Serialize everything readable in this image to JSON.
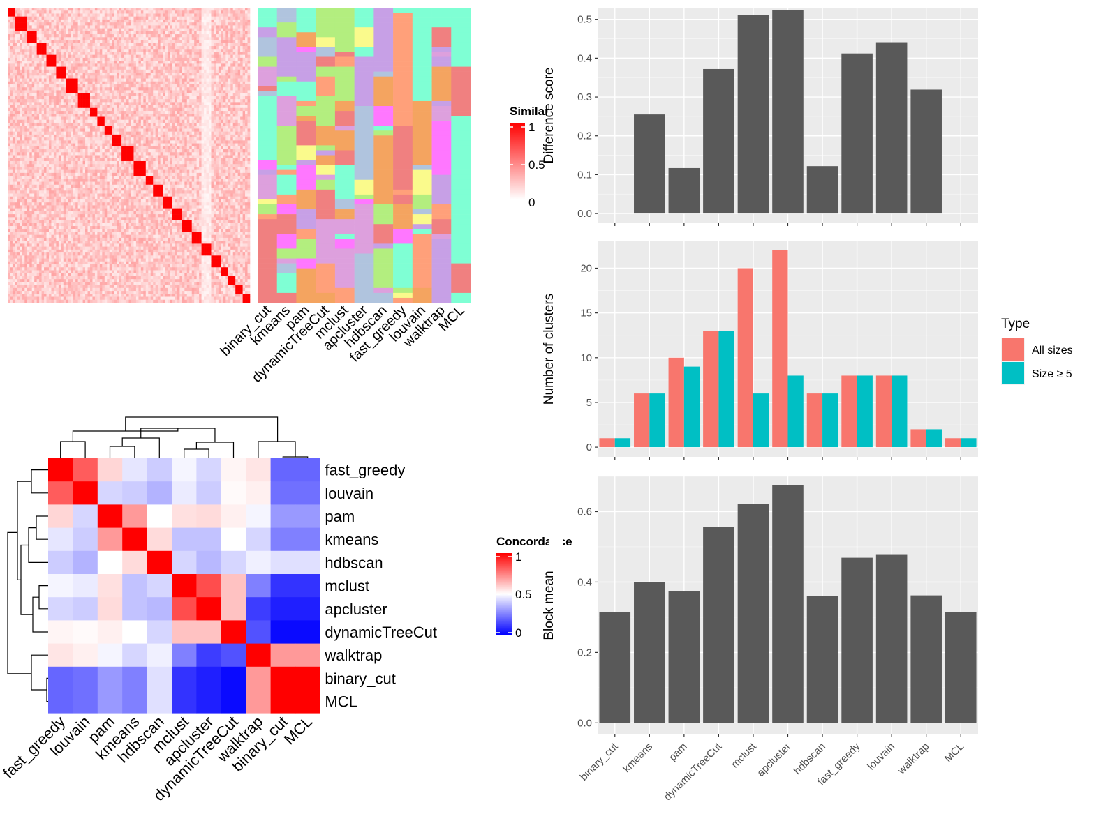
{
  "methods_order": [
    "binary_cut",
    "kmeans",
    "pam",
    "dynamicTreeCut",
    "mclust",
    "apcluster",
    "hdbscan",
    "fast_greedy",
    "louvain",
    "walktrap",
    "MCL"
  ],
  "similarity_legend": {
    "title": "Similarity",
    "ticks": [
      "1",
      "0.5",
      "0"
    ],
    "colors": [
      "#ffffff",
      "#ff0000"
    ]
  },
  "concordance_legend": {
    "title": "Concordance",
    "ticks": [
      "1",
      "0.5",
      "0"
    ],
    "colors": [
      "#0000ff",
      "#ffffff",
      "#ff0000"
    ]
  },
  "concordance_heatmap": {
    "row_labels": [
      "fast_greedy",
      "louvain",
      "pam",
      "kmeans",
      "hdbscan",
      "mclust",
      "apcluster",
      "dynamicTreeCut",
      "walktrap",
      "binary_cut",
      "MCL"
    ],
    "col_labels": [
      "fast_greedy",
      "louvain",
      "pam",
      "kmeans",
      "hdbscan",
      "mclust",
      "apcluster",
      "dynamicTreeCut",
      "walktrap",
      "binary_cut",
      "MCL"
    ],
    "values": [
      [
        1.0,
        0.82,
        0.58,
        0.45,
        0.4,
        0.48,
        0.42,
        0.52,
        0.55,
        0.2,
        0.2
      ],
      [
        0.82,
        1.0,
        0.42,
        0.4,
        0.35,
        0.46,
        0.4,
        0.51,
        0.53,
        0.22,
        0.22
      ],
      [
        0.58,
        0.42,
        1.0,
        0.7,
        0.5,
        0.56,
        0.57,
        0.53,
        0.48,
        0.3,
        0.3
      ],
      [
        0.45,
        0.4,
        0.7,
        1.0,
        0.57,
        0.38,
        0.38,
        0.5,
        0.42,
        0.25,
        0.25
      ],
      [
        0.4,
        0.35,
        0.5,
        0.57,
        1.0,
        0.42,
        0.36,
        0.42,
        0.47,
        0.44,
        0.44
      ],
      [
        0.48,
        0.46,
        0.56,
        0.38,
        0.42,
        1.0,
        0.85,
        0.62,
        0.25,
        0.1,
        0.1
      ],
      [
        0.42,
        0.4,
        0.57,
        0.38,
        0.36,
        0.85,
        1.0,
        0.62,
        0.12,
        0.06,
        0.06
      ],
      [
        0.52,
        0.51,
        0.53,
        0.5,
        0.42,
        0.62,
        0.62,
        1.0,
        0.16,
        0.02,
        0.02
      ],
      [
        0.55,
        0.53,
        0.48,
        0.42,
        0.47,
        0.25,
        0.12,
        0.16,
        1.0,
        0.7,
        0.7
      ],
      [
        0.2,
        0.22,
        0.3,
        0.25,
        0.44,
        0.1,
        0.06,
        0.02,
        0.7,
        1.0,
        1.0
      ],
      [
        0.2,
        0.22,
        0.3,
        0.25,
        0.44,
        0.1,
        0.06,
        0.02,
        0.7,
        1.0,
        1.0
      ]
    ]
  },
  "chart_data": [
    {
      "type": "bar",
      "title": "",
      "xlabel": "",
      "ylabel": "Difference score",
      "categories": [
        "binary_cut",
        "kmeans",
        "pam",
        "dynamicTreeCut",
        "mclust",
        "apcluster",
        "hdbscan",
        "fast_greedy",
        "louvain",
        "walktrap",
        "MCL"
      ],
      "values": [
        0,
        0.255,
        0.117,
        0.372,
        0.512,
        0.523,
        0.122,
        0.412,
        0.441,
        0.319,
        0
      ],
      "ylim": [
        0,
        0.53
      ],
      "yticks": [
        0,
        0.1,
        0.2,
        0.3,
        0.4,
        0.5
      ],
      "ytick_labels": [
        "0.0",
        "0.1",
        "0.2",
        "0.3",
        "0.4",
        "0.5"
      ],
      "grid": true,
      "bar_color": "#595959"
    },
    {
      "type": "bar",
      "title": "",
      "xlabel": "",
      "ylabel": "Number of clusters",
      "categories": [
        "binary_cut",
        "kmeans",
        "pam",
        "dynamicTreeCut",
        "mclust",
        "apcluster",
        "hdbscan",
        "fast_greedy",
        "louvain",
        "walktrap",
        "MCL"
      ],
      "series": [
        {
          "name": "All sizes",
          "color": "#F8766D",
          "values": [
            1,
            6,
            10,
            13,
            20,
            22,
            6,
            8,
            8,
            2,
            1
          ]
        },
        {
          "name": "Size ≥ 5",
          "color": "#00BFC4",
          "values": [
            1,
            6,
            9,
            13,
            6,
            8,
            6,
            8,
            8,
            2,
            1
          ]
        }
      ],
      "ylim": [
        0,
        23
      ],
      "yticks": [
        0,
        5,
        10,
        15,
        20
      ],
      "ytick_labels": [
        "0",
        "5",
        "10",
        "15",
        "20"
      ],
      "legend_title": "Type",
      "legend_position": "right",
      "grid": true
    },
    {
      "type": "bar",
      "title": "",
      "xlabel": "",
      "ylabel": "Block mean",
      "categories": [
        "binary_cut",
        "kmeans",
        "pam",
        "dynamicTreeCut",
        "mclust",
        "apcluster",
        "hdbscan",
        "fast_greedy",
        "louvain",
        "walktrap",
        "MCL"
      ],
      "values": [
        0.315,
        0.399,
        0.375,
        0.557,
        0.621,
        0.676,
        0.36,
        0.469,
        0.479,
        0.362,
        0.315
      ],
      "ylim": [
        0,
        0.7
      ],
      "yticks": [
        0,
        0.2,
        0.4,
        0.6
      ],
      "ytick_labels": [
        "0.0",
        "0.2",
        "0.4",
        "0.6"
      ],
      "grid": true,
      "bar_color": "#595959"
    }
  ]
}
